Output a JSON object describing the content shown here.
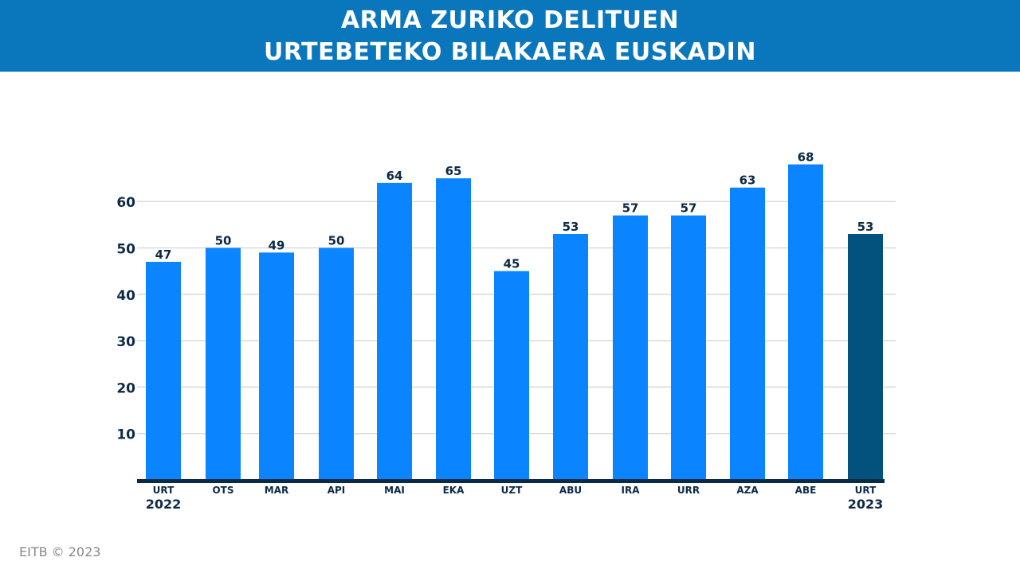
{
  "header": {
    "title_line1": "ARMA ZURIKO DELITUEN",
    "title_line2": "URTEBETEKO BILAKAERA EUSKADIN"
  },
  "footer": {
    "credit": "EITB © 2023"
  },
  "colors": {
    "banner": "#0a77bc",
    "bar": "#0a84ff",
    "bar_highlight": "#03527e",
    "text": "#0d2a45",
    "grid": "#d9d9d9",
    "axis": "#0d2a45"
  },
  "chart_data": {
    "type": "bar",
    "title": "ARMA ZURIKO DELITUEN URTEBETEKO BILAKAERA EUSKADIN",
    "categories": [
      "URT",
      "OTS",
      "MAR",
      "API",
      "MAI",
      "EKA",
      "UZT",
      "ABU",
      "IRA",
      "URR",
      "AZA",
      "ABE",
      "URT"
    ],
    "year_labels": [
      "2022",
      "",
      "",
      "",
      "",
      "",
      "",
      "",
      "",
      "",
      "",
      "",
      "2023"
    ],
    "values": [
      47,
      50,
      49,
      50,
      64,
      65,
      45,
      53,
      57,
      57,
      63,
      68,
      53
    ],
    "highlight_index": 12,
    "yticks": [
      10,
      20,
      30,
      40,
      50,
      60
    ],
    "ylim": [
      0,
      70
    ],
    "grid": true,
    "data_labels": true,
    "legend": "none"
  }
}
